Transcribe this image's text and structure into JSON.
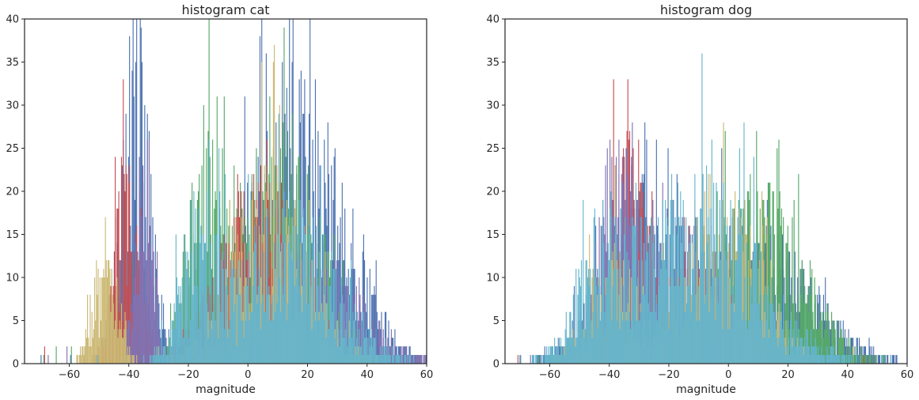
{
  "chart_data": [
    {
      "type": "histogram",
      "title": "histogram cat",
      "xlabel": "magnitude",
      "ylabel": "",
      "xlim": [
        -75,
        60
      ],
      "ylim": [
        0,
        40
      ],
      "xticks": [
        -60,
        -40,
        -20,
        0,
        20,
        40,
        60
      ],
      "yticks": [
        0,
        5,
        10,
        15,
        20,
        25,
        30,
        35,
        40
      ],
      "grid": false,
      "series": [
        {
          "color": "#4c72b0",
          "peaks": [
            [
              -38,
              30,
              5,
              3
            ],
            [
              16,
              25,
              16,
              4
            ]
          ]
        },
        {
          "color": "#55a868",
          "peaks": [
            [
              -14,
              20,
              6,
              3
            ],
            [
              11,
              21,
              13,
              4
            ]
          ]
        },
        {
          "color": "#c44e52",
          "peaks": [
            [
              -41,
              18,
              4,
              2
            ],
            [
              4,
              16,
              14,
              3
            ]
          ]
        },
        {
          "color": "#8172b2",
          "peaks": [
            [
              -35,
              22,
              3,
              3
            ],
            [
              22,
              10,
              15,
              2
            ]
          ]
        },
        {
          "color": "#ccb974",
          "peaks": [
            [
              -48,
              12,
              4,
              2
            ],
            [
              8,
              16,
              13,
              3
            ]
          ]
        },
        {
          "color": "#64b5cd",
          "peaks": [
            [
              -17,
              12,
              6,
              2
            ],
            [
              13,
              14,
              16,
              2
            ]
          ]
        }
      ]
    },
    {
      "type": "histogram",
      "title": "histogram dog",
      "xlabel": "magnitude",
      "ylabel": "",
      "xlim": [
        -75,
        60
      ],
      "ylim": [
        0,
        40
      ],
      "xticks": [
        -60,
        -40,
        -20,
        0,
        20,
        40,
        60
      ],
      "yticks": [
        0,
        5,
        10,
        15,
        20,
        25,
        30,
        35,
        40
      ],
      "grid": false,
      "series": [
        {
          "color": "#4c72b0",
          "peaks": [
            [
              -30,
              14,
              14,
              3
            ],
            [
              10,
              12,
              18,
              3
            ]
          ]
        },
        {
          "color": "#55a868",
          "peaks": [
            [
              10,
              16,
              15,
              4
            ],
            [
              -35,
              6,
              10,
              2
            ]
          ]
        },
        {
          "color": "#c44e52",
          "peaks": [
            [
              -34,
              22,
              5,
              4
            ],
            [
              -10,
              10,
              12,
              2
            ]
          ]
        },
        {
          "color": "#8172b2",
          "peaks": [
            [
              -38,
              18,
              6,
              4
            ],
            [
              -15,
              12,
              12,
              2
            ]
          ]
        },
        {
          "color": "#ccb974",
          "peaks": [
            [
              -3,
              16,
              13,
              3
            ],
            [
              -40,
              10,
              8,
              2
            ]
          ]
        },
        {
          "color": "#64b5cd",
          "peaks": [
            [
              -10,
              16,
              20,
              3
            ],
            [
              -42,
              10,
              8,
              2
            ]
          ]
        }
      ]
    }
  ]
}
